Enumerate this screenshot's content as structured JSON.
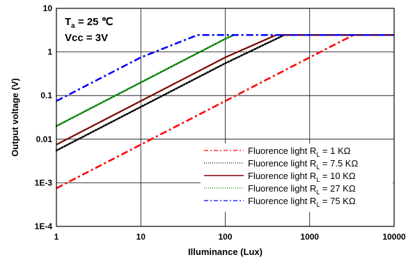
{
  "chart_data": {
    "type": "line",
    "xscale": "log",
    "yscale": "log",
    "xlim": [
      1,
      10000
    ],
    "ylim": [
      0.0001,
      10
    ],
    "xlabel": "Illuminance (Lux)",
    "ylabel": "Output voltage (V)",
    "grid": true,
    "legend_position": "bottom-right",
    "x_ticks": [
      1,
      10,
      100,
      1000,
      10000
    ],
    "x_tick_labels": [
      "1",
      "10",
      "100",
      "1000",
      "10000"
    ],
    "y_ticks": [
      0.0001,
      0.001,
      0.01,
      0.1,
      1,
      10
    ],
    "y_tick_labels": [
      "1E-4",
      "1E-3",
      "0.01",
      "0.1",
      "1",
      "10"
    ],
    "annotations": {
      "ta_main": "T",
      "ta_sub": "a",
      "ta_rest": " = 25 ℃",
      "vcc": "Vcc = 3V"
    },
    "series": [
      {
        "legend_prefix": "Fluorence light R",
        "legend_sub": "L",
        "legend_suffix": " = 1 KΩ",
        "color": "#ff0000",
        "dash": "dashdot",
        "x": [
          1,
          10,
          100,
          1000,
          3300,
          10000
        ],
        "y": [
          0.00075,
          0.0075,
          0.075,
          0.75,
          2.45,
          2.45
        ]
      },
      {
        "legend_prefix": "Fluorence light R",
        "legend_sub": "L",
        "legend_suffix": " = 7.5 KΩ",
        "color": "#000000",
        "dash": "dotted",
        "x": [
          1,
          10,
          100,
          500,
          10000
        ],
        "y": [
          0.0055,
          0.055,
          0.55,
          2.45,
          2.45
        ]
      },
      {
        "legend_prefix": "Fluorence light R",
        "legend_sub": "L",
        "legend_suffix": " = 10 KΩ",
        "color": "#800000",
        "dash": "solid",
        "x": [
          1,
          10,
          100,
          400,
          10000
        ],
        "y": [
          0.0075,
          0.075,
          0.75,
          2.45,
          2.45
        ]
      },
      {
        "legend_prefix": "Fluorence light R",
        "legend_sub": "L",
        "legend_suffix": " = 27 KΩ",
        "color": "#008000",
        "dash": "dotted",
        "x": [
          1,
          10,
          100,
          130
        ],
        "y": [
          0.02,
          0.2,
          2.0,
          2.5
        ]
      },
      {
        "legend_prefix": "Fluorence light R",
        "legend_sub": "L",
        "legend_suffix": " = 75 KΩ",
        "color": "#0000ff",
        "dash": "dashdot",
        "x": [
          1,
          10,
          47,
          10000
        ],
        "y": [
          0.075,
          0.75,
          2.45,
          2.45
        ]
      }
    ]
  }
}
